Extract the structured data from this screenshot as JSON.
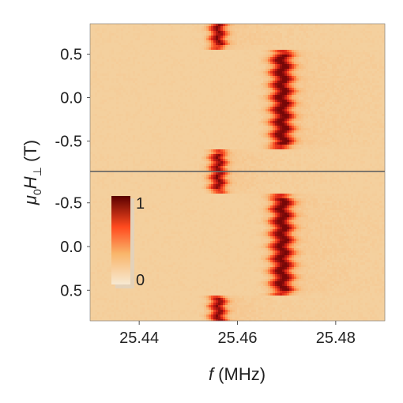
{
  "chart_data": {
    "type": "heatmap",
    "xlabel_italic": "f",
    "xlabel_unit": " (MHz)",
    "ylabel_main": "μ",
    "ylabel_sub0": "0",
    "ylabel_H": "H",
    "ylabel_subperp": "⊥",
    "ylabel_unit": " (T)",
    "xlim": [
      25.43,
      25.49
    ],
    "x_ticks": [
      {
        "value": 25.44,
        "label": "25.44"
      },
      {
        "value": 25.46,
        "label": "25.46"
      },
      {
        "value": 25.48,
        "label": "25.48"
      }
    ],
    "panels": [
      {
        "name": "top",
        "ylim": [
          -0.85,
          0.85
        ],
        "y_reversed": false,
        "y_ticks": [
          {
            "value": 0.5,
            "label": "0.5"
          },
          {
            "value": 0.0,
            "label": "0.0"
          },
          {
            "value": -0.5,
            "label": "-0.5"
          }
        ],
        "switch_field": [
          -0.6,
          0.55
        ],
        "peak_low_MHz": 25.456,
        "peak_high_MHz": 25.469
      },
      {
        "name": "bottom",
        "ylim": [
          -0.85,
          0.85
        ],
        "y_reversed": true,
        "y_ticks": [
          {
            "value": -0.5,
            "label": "-0.5"
          },
          {
            "value": 0.0,
            "label": "0.0"
          },
          {
            "value": 0.5,
            "label": "0.5"
          }
        ],
        "switch_field": [
          -0.6,
          0.55
        ],
        "peak_low_MHz": 25.456,
        "peak_high_MHz": 25.469
      }
    ],
    "colorbar": {
      "min": 0,
      "max": 1,
      "min_label": "0",
      "max_label": "1"
    },
    "colors": {
      "background": "#f4cc94",
      "mid": "#ff5d2a",
      "peak": "#8b0a08",
      "low": "#f7e6cc"
    }
  }
}
